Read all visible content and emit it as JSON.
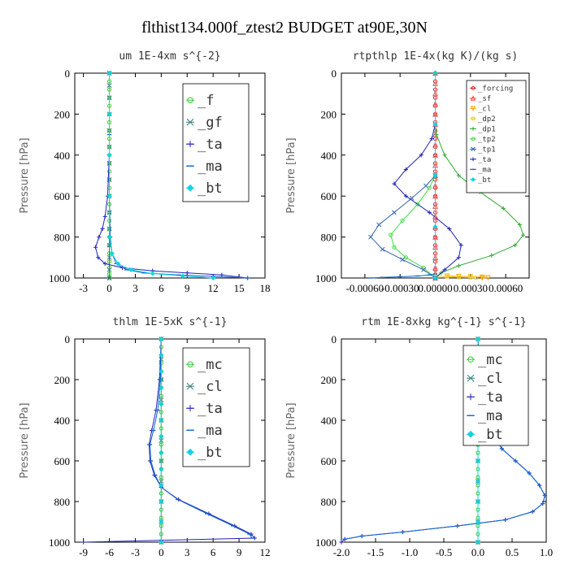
{
  "figure_title": "flthist134.000f_ztest2  BUDGET at90E,30N",
  "chart_data": [
    {
      "type": "line",
      "title": "um  1E-4xm s^{-2}",
      "ylabel": "Pressure [hPa]",
      "xlim": [
        -4,
        18
      ],
      "ylim": [
        1000,
        0
      ],
      "xticks": [
        "-3",
        "0",
        "3",
        "6",
        "9",
        "12",
        "15",
        "18"
      ],
      "yticks": [
        "0",
        "200",
        "400",
        "600",
        "800",
        "1000"
      ],
      "legend": {
        "position": "top-right",
        "entries": [
          "_f",
          "_gf",
          "_ta",
          "_ma",
          "_bt"
        ]
      },
      "series": [
        {
          "name": "_f",
          "color": "#33cc33",
          "marker": "circle",
          "x": [
            0,
            0,
            0,
            0,
            0,
            0,
            0,
            0,
            0,
            0,
            0,
            0,
            0,
            0,
            0,
            0,
            0,
            0,
            0,
            0,
            0,
            0,
            0,
            0,
            0,
            0,
            0
          ],
          "y": [
            0,
            40,
            80,
            120,
            160,
            200,
            240,
            280,
            320,
            360,
            400,
            440,
            480,
            520,
            560,
            600,
            640,
            680,
            720,
            760,
            800,
            840,
            880,
            920,
            950,
            980,
            1000
          ]
        },
        {
          "name": "_gf",
          "color": "#2f7f7f",
          "marker": "x",
          "x": [
            0,
            0,
            0,
            0,
            0,
            0,
            0,
            0,
            0,
            0,
            0,
            0,
            0,
            0,
            0
          ],
          "y": [
            0,
            60,
            120,
            200,
            280,
            360,
            440,
            520,
            600,
            680,
            760,
            840,
            900,
            960,
            1000
          ]
        },
        {
          "name": "_ta",
          "color": "#2222bb",
          "marker": "plus",
          "x": [
            0,
            0,
            0,
            -0.2,
            -0.5,
            -0.8,
            -1.2,
            -1.6,
            -1.3,
            -0.5,
            1.5,
            5,
            9,
            13,
            16
          ],
          "y": [
            0,
            200,
            400,
            600,
            700,
            760,
            800,
            850,
            900,
            930,
            950,
            965,
            975,
            985,
            1000
          ]
        },
        {
          "name": "_ma",
          "color": "#1166cc",
          "marker": "dash",
          "x": [
            0,
            0,
            0,
            0.1,
            0.3,
            0.8,
            2,
            4,
            8,
            12,
            16
          ],
          "y": [
            0,
            300,
            600,
            800,
            880,
            930,
            960,
            975,
            985,
            992,
            1000
          ]
        },
        {
          "name": "_bt",
          "color": "#11d4e0",
          "marker": "diamond",
          "x": [
            0,
            0,
            0,
            0,
            0,
            0.3,
            1,
            2.5,
            5,
            8.5,
            12
          ],
          "y": [
            0,
            200,
            400,
            600,
            800,
            880,
            930,
            960,
            978,
            990,
            1000
          ]
        }
      ]
    },
    {
      "type": "line",
      "title": "rtpthlp  1E-4x(kg K)/(kg s)",
      "ylabel": "Pressure [hPa]",
      "xlim": [
        -0.0008,
        0.0008
      ],
      "ylim": [
        1000,
        0
      ],
      "xticks": [
        "-0.00060",
        "-0.00030",
        "0.00000",
        "0.00030",
        "0.00060"
      ],
      "yticks": [
        "0",
        "200",
        "400",
        "600",
        "800",
        "1000"
      ],
      "legend": {
        "position": "top-right",
        "entries": [
          "_forcing",
          "_sf",
          "_cl",
          "_dp2",
          "_dp1",
          "_tp2",
          "_tp1",
          "_ta",
          "_ma",
          "_bt"
        ]
      },
      "series": [
        {
          "name": "_forcing",
          "color": "#dd2222",
          "marker": "circle",
          "x": [
            0,
            0,
            0,
            0,
            0,
            0,
            0,
            0,
            0,
            0,
            0,
            0,
            0,
            0,
            0,
            0,
            0,
            0,
            0,
            0,
            0,
            0,
            0,
            0,
            0,
            0
          ],
          "y": [
            0,
            40,
            80,
            120,
            160,
            200,
            240,
            280,
            320,
            360,
            400,
            440,
            480,
            520,
            560,
            600,
            640,
            680,
            720,
            760,
            800,
            840,
            880,
            920,
            960,
            1000
          ]
        },
        {
          "name": "_sf",
          "color": "#ff4444",
          "marker": "triangle",
          "x": [
            0,
            0,
            0,
            0,
            0,
            0,
            0,
            0,
            0,
            0,
            0,
            0,
            0,
            0,
            0,
            0,
            0,
            0,
            0,
            0,
            0,
            0
          ],
          "y": [
            0,
            50,
            100,
            150,
            200,
            250,
            300,
            350,
            400,
            450,
            500,
            550,
            600,
            650,
            700,
            750,
            800,
            850,
            900,
            950,
            980,
            1000
          ]
        },
        {
          "name": "_cl",
          "color": "#ffaa00",
          "marker": "triangle-down",
          "x": [
            0.0001,
            0.0002,
            0.0003,
            0.0004,
            0.00045,
            0.0004
          ],
          "y": [
            990,
            992,
            994,
            996,
            998,
            1000
          ]
        },
        {
          "name": "_dp2",
          "color": "#eecc33",
          "marker": "square",
          "x": [
            0,
            0.0001,
            0.0002,
            0.0003,
            0.00035
          ],
          "y": [
            990,
            993,
            996,
            998,
            1000
          ]
        },
        {
          "name": "_dp1",
          "color": "#33aa33",
          "marker": "plus",
          "x": [
            0,
            1e-05,
            8e-05,
            0.0002,
            0.00038,
            0.00058,
            0.00072,
            0.00075,
            0.00068,
            0.00048,
            0.0002,
            5e-05,
            0
          ],
          "y": [
            250,
            300,
            400,
            500,
            580,
            660,
            740,
            790,
            840,
            890,
            940,
            975,
            1000
          ]
        },
        {
          "name": "_tp2",
          "color": "#44dd44",
          "marker": "circle",
          "x": [
            0,
            -5e-05,
            -0.00015,
            -0.00028,
            -0.00038,
            -0.00035,
            -0.00025,
            -0.0001,
            0
          ],
          "y": [
            500,
            560,
            640,
            720,
            790,
            850,
            900,
            950,
            1000
          ]
        },
        {
          "name": "_tp1",
          "color": "#3366aa",
          "marker": "x",
          "x": [
            0,
            -8e-05,
            -0.0002,
            -0.00035,
            -0.00048,
            -0.00055,
            -0.00045,
            -0.00028,
            -0.0001,
            0
          ],
          "y": [
            500,
            550,
            610,
            680,
            740,
            800,
            860,
            910,
            960,
            1000
          ]
        },
        {
          "name": "_ta",
          "color": "#2222bb",
          "marker": "plus",
          "x": [
            0,
            -3e-05,
            -0.00012,
            -0.00025,
            -0.00035,
            -0.00025,
            -5e-05,
            0.00012,
            0.00022,
            0.0002,
            8e-05,
            0
          ],
          "y": [
            250,
            320,
            400,
            470,
            540,
            600,
            680,
            760,
            840,
            900,
            960,
            1000
          ]
        },
        {
          "name": "_ma",
          "color": "#1166cc",
          "marker": "dash",
          "x": [
            0,
            -5e-05,
            -0.00015,
            -0.0003,
            -0.00045,
            -0.00055
          ],
          "y": [
            980,
            985,
            990,
            994,
            997,
            1000
          ]
        },
        {
          "name": "_bt",
          "color": "#11d4e0",
          "marker": "diamond",
          "x": [
            0,
            0,
            0,
            0,
            0
          ],
          "y": [
            0,
            250,
            500,
            750,
            1000
          ]
        }
      ]
    },
    {
      "type": "line",
      "title": "thlm  1E-5xK s^{-1}",
      "ylabel": "Pressure [hPa]",
      "xlim": [
        -10,
        12
      ],
      "ylim": [
        1000,
        0
      ],
      "xticks": [
        "-9",
        "-6",
        "-3",
        "0",
        "3",
        "6",
        "9",
        "12"
      ],
      "yticks": [
        "0",
        "200",
        "400",
        "600",
        "800",
        "1000"
      ],
      "legend": {
        "position": "top-right",
        "entries": [
          "_mc",
          "_cl",
          "_ta",
          "_ma",
          "_bt"
        ]
      },
      "series": [
        {
          "name": "_mc",
          "color": "#33cc33",
          "marker": "circle",
          "x": [
            0,
            0,
            0,
            0,
            0,
            0,
            0,
            0,
            0,
            0,
            0,
            0,
            0,
            0,
            0,
            0,
            0,
            0,
            0,
            0,
            0,
            0,
            0,
            0,
            0,
            0
          ],
          "y": [
            0,
            40,
            80,
            120,
            160,
            200,
            240,
            280,
            320,
            360,
            400,
            440,
            480,
            520,
            560,
            600,
            640,
            680,
            720,
            760,
            800,
            840,
            880,
            920,
            960,
            1000
          ]
        },
        {
          "name": "_cl",
          "color": "#2f7f7f",
          "marker": "x",
          "x": [
            0,
            0,
            0,
            0,
            0,
            0,
            0,
            0,
            0,
            0,
            0
          ],
          "y": [
            0,
            100,
            200,
            300,
            400,
            500,
            600,
            700,
            800,
            900,
            1000
          ]
        },
        {
          "name": "_ta",
          "color": "#2222bb",
          "marker": "plus",
          "x": [
            0,
            -0.2,
            -0.6,
            -1.1,
            -1.4,
            -1.3,
            -0.8,
            0,
            2,
            5.5,
            8.5,
            10.4,
            10.8,
            -9
          ],
          "y": [
            0,
            200,
            350,
            450,
            520,
            600,
            670,
            730,
            790,
            860,
            920,
            960,
            980,
            1000
          ]
        },
        {
          "name": "_ma",
          "color": "#1166cc",
          "marker": "dash",
          "x": [
            0,
            -0.1,
            -0.4,
            -0.9,
            -1.3,
            -1.2,
            -0.7,
            0,
            1.9,
            5.3,
            8.3,
            10.2,
            10.5
          ],
          "y": [
            0,
            200,
            350,
            450,
            520,
            600,
            670,
            730,
            790,
            860,
            920,
            960,
            980
          ]
        },
        {
          "name": "_bt",
          "color": "#11d4e0",
          "marker": "diamond",
          "x": [
            0,
            0,
            0,
            0,
            0,
            0,
            0,
            0,
            0,
            0,
            0,
            0,
            0
          ],
          "y": [
            0,
            80,
            160,
            240,
            320,
            400,
            480,
            560,
            640,
            720,
            800,
            900,
            1000
          ]
        }
      ]
    },
    {
      "type": "line",
      "title": "rtm  1E-8xkg kg^{-1} s^{-1}",
      "ylabel": "Pressure [hPa]",
      "xlim": [
        -2.0,
        1.0
      ],
      "ylim": [
        1000,
        0
      ],
      "xticks": [
        "-2.0",
        "-1.5",
        "-1.0",
        "-0.5",
        "0.0",
        "0.5",
        "1.0"
      ],
      "yticks": [
        "0",
        "200",
        "400",
        "600",
        "800",
        "1000"
      ],
      "legend": {
        "position": "top-right",
        "entries": [
          "_mc",
          "_cl",
          "_ta",
          "_ma",
          "_bt"
        ]
      },
      "series": [
        {
          "name": "_mc",
          "color": "#33cc33",
          "marker": "circle",
          "x": [
            0,
            0,
            0,
            0,
            0,
            0,
            0,
            0,
            0,
            0,
            0,
            0,
            0,
            0,
            0,
            0,
            0,
            0,
            0,
            0,
            0,
            0,
            0,
            0,
            0,
            0
          ],
          "y": [
            0,
            40,
            80,
            120,
            160,
            200,
            240,
            280,
            320,
            360,
            400,
            440,
            480,
            520,
            560,
            600,
            640,
            680,
            720,
            760,
            800,
            840,
            880,
            920,
            960,
            1000
          ]
        },
        {
          "name": "_cl",
          "color": "#2f7f7f",
          "marker": "x",
          "x": [
            0,
            0,
            0,
            0,
            0,
            0,
            0,
            0,
            0,
            0,
            0
          ],
          "y": [
            0,
            100,
            200,
            300,
            400,
            500,
            600,
            700,
            800,
            900,
            1000
          ]
        },
        {
          "name": "_ta",
          "color": "#2222bb",
          "marker": "plus",
          "x": [
            0,
            0.02,
            0.04,
            0.07,
            0.12,
            0.2,
            0.35,
            0.55,
            0.75,
            0.9,
            0.98,
            0.95,
            0.8,
            0.4,
            -0.3,
            -1.1,
            -1.7,
            -1.95,
            -2.0
          ],
          "y": [
            0,
            100,
            200,
            300,
            380,
            460,
            540,
            600,
            660,
            720,
            770,
            810,
            850,
            890,
            920,
            950,
            970,
            985,
            1000
          ]
        },
        {
          "name": "_ma",
          "color": "#1166cc",
          "marker": "dash",
          "x": [
            0,
            0.02,
            0.04,
            0.07,
            0.12,
            0.2,
            0.35,
            0.55,
            0.75,
            0.9,
            0.98,
            0.95,
            0.8,
            0.4,
            -0.3,
            -1.1,
            -1.7,
            -1.95
          ],
          "y": [
            0,
            100,
            200,
            300,
            380,
            460,
            540,
            600,
            660,
            720,
            770,
            810,
            850,
            890,
            920,
            950,
            970,
            985
          ]
        },
        {
          "name": "_bt",
          "color": "#11d4e0",
          "marker": "diamond",
          "x": [
            0,
            0,
            0,
            0,
            0,
            0,
            0,
            0,
            0,
            0,
            0
          ],
          "y": [
            0,
            100,
            200,
            300,
            400,
            500,
            600,
            700,
            800,
            900,
            1000
          ]
        }
      ]
    }
  ]
}
